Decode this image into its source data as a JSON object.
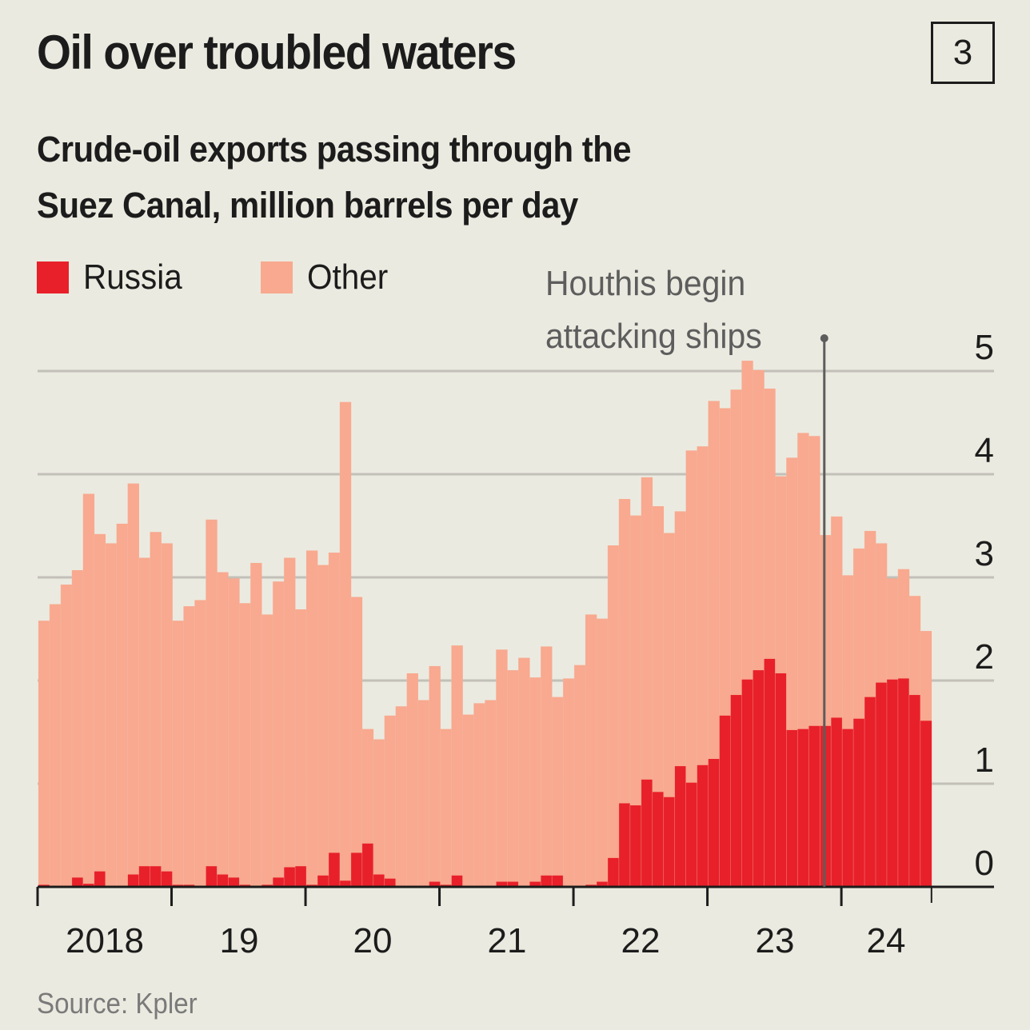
{
  "header": {
    "title": "Oil over troubled waters",
    "badge": "3",
    "subtitle_line1": "Crude-oil exports passing through the",
    "subtitle_line2": "Suez Canal, million barrels per day"
  },
  "annotation": {
    "line1": "Houthis begin",
    "line2": "attacking ships",
    "at_month_index": 70.4
  },
  "source": "Source: Kpler",
  "colors": {
    "background": "#ebeae0",
    "russia": "#e8202a",
    "other": "#f8a98f",
    "grid": "#c2c0b8",
    "axis": "#1c1c1c",
    "annotation": "#5d5d5d"
  },
  "chart_data": {
    "type": "bar",
    "stacked": true,
    "title": "Oil over troubled waters",
    "subtitle": "Crude-oil exports passing through the Suez Canal, million barrels per day",
    "xlabel": "",
    "ylabel": "million barrels per day",
    "ylim": [
      0,
      5
    ],
    "yticks": [
      0,
      1,
      2,
      3,
      4,
      5
    ],
    "ytick_labels": [
      "0",
      "1",
      "2",
      "3",
      "4",
      "5"
    ],
    "grid": true,
    "y_axis_side": "right",
    "legend_position": "top-left",
    "x_start": "2018-01",
    "x_end": "2024-08",
    "frequency": "monthly",
    "xtick_labels": [
      "2018",
      "19",
      "20",
      "21",
      "22",
      "23",
      "24"
    ],
    "series": [
      {
        "name": "Russia",
        "color": "#e8202a",
        "values": [
          0.02,
          0.0,
          0.0,
          0.09,
          0.03,
          0.15,
          0.01,
          0.01,
          0.12,
          0.2,
          0.2,
          0.15,
          0.02,
          0.02,
          0.0,
          0.2,
          0.12,
          0.09,
          0.02,
          0.0,
          0.02,
          0.09,
          0.19,
          0.2,
          0.02,
          0.11,
          0.33,
          0.06,
          0.33,
          0.42,
          0.12,
          0.08,
          0.01,
          0.01,
          0.01,
          0.05,
          0.02,
          0.11,
          0.01,
          0.01,
          0.01,
          0.05,
          0.05,
          0.01,
          0.05,
          0.11,
          0.11,
          0.01,
          0.01,
          0.02,
          0.05,
          0.28,
          0.81,
          0.79,
          1.04,
          0.92,
          0.87,
          1.17,
          1.01,
          1.18,
          1.24,
          1.66,
          1.86,
          2.01,
          2.1,
          2.21,
          2.07,
          1.52,
          1.53,
          1.56,
          1.56,
          1.64,
          1.53,
          1.63,
          1.84,
          1.98,
          2.01,
          2.02,
          1.86,
          1.61
        ]
      },
      {
        "name": "Other",
        "color": "#f8a98f",
        "values": [
          2.56,
          2.74,
          2.93,
          2.98,
          3.78,
          3.27,
          3.32,
          3.51,
          3.79,
          2.99,
          3.24,
          3.18,
          2.56,
          2.7,
          2.78,
          3.36,
          2.93,
          2.9,
          2.73,
          3.14,
          2.62,
          2.87,
          3.0,
          2.49,
          3.24,
          3.01,
          2.91,
          4.64,
          2.48,
          1.11,
          1.31,
          1.58,
          1.74,
          2.06,
          1.8,
          2.09,
          1.51,
          2.23,
          1.66,
          1.77,
          1.8,
          2.25,
          2.05,
          2.21,
          1.98,
          2.22,
          1.73,
          2.01,
          2.14,
          2.62,
          2.55,
          3.03,
          2.95,
          2.81,
          2.93,
          2.77,
          2.56,
          2.47,
          3.22,
          3.09,
          3.47,
          2.98,
          2.96,
          3.09,
          2.91,
          2.62,
          1.91,
          2.64,
          2.87,
          2.81,
          1.85,
          1.95,
          1.49,
          1.65,
          1.61,
          1.35,
          0.98,
          1.06,
          0.96,
          0.87
        ]
      }
    ]
  }
}
